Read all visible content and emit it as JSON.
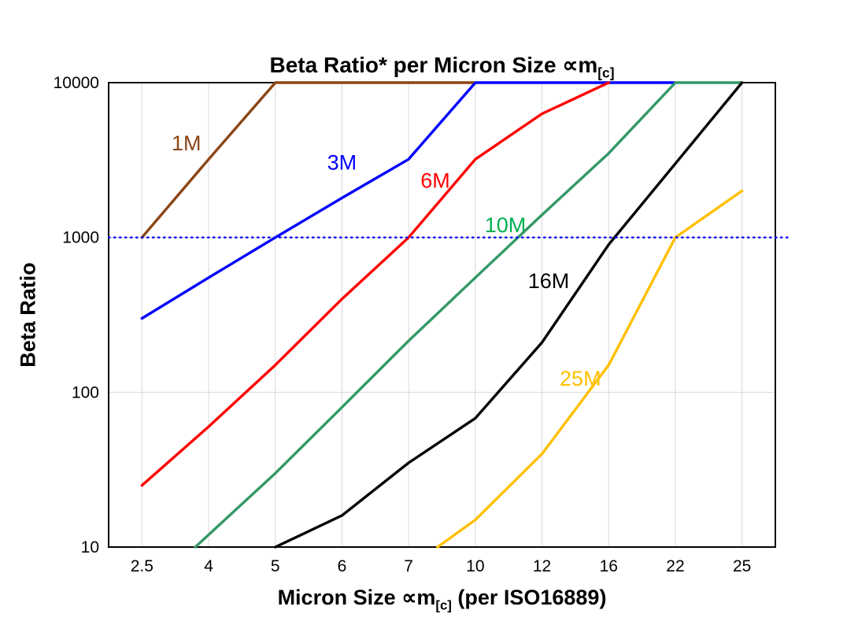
{
  "title": {
    "prefix": "Beta Ratio* per Micron Size ",
    "symbol": "∝m",
    "subscript": "[c]"
  },
  "axes": {
    "y_label": "Beta Ratio",
    "x_label_prefix": "Micron Size ",
    "x_label_symbol": "∝m",
    "x_label_subscript": "[c]",
    "x_label_suffix": " (per ISO16889)"
  },
  "chart_data": {
    "type": "line",
    "title": "Beta Ratio* per Micron Size ∝m[c]",
    "xlabel": "Micron Size ∝m[c] (per ISO16889)",
    "ylabel": "Beta Ratio",
    "x_scale": "categorical",
    "y_scale": "log",
    "grid": true,
    "legend_position": "inline-labels",
    "x_categories": [
      2.5,
      4,
      5,
      6,
      7,
      10,
      12,
      16,
      22,
      25
    ],
    "y_ticks": [
      10,
      100,
      1000,
      10000
    ],
    "ylim": [
      10,
      10000
    ],
    "reference_line": {
      "value": 1000,
      "color": "#0000ff",
      "style": "dotted"
    },
    "series": [
      {
        "name": "1M",
        "color": "#8b4513",
        "points": [
          [
            2.5,
            1000
          ],
          [
            4,
            3200
          ],
          [
            5,
            10000
          ],
          [
            10,
            10000
          ]
        ]
      },
      {
        "name": "3M",
        "color": "#0000ff",
        "points": [
          [
            2.5,
            300
          ],
          [
            4,
            550
          ],
          [
            5,
            1000
          ],
          [
            6,
            1800
          ],
          [
            7,
            3200
          ],
          [
            10,
            10000
          ],
          [
            22,
            10000
          ]
        ]
      },
      {
        "name": "6M",
        "color": "#ff0000",
        "points": [
          [
            2.5,
            25
          ],
          [
            4,
            60
          ],
          [
            5,
            150
          ],
          [
            6,
            400
          ],
          [
            7,
            1000
          ],
          [
            10,
            3200
          ],
          [
            12,
            6300
          ],
          [
            16,
            10000
          ]
        ]
      },
      {
        "name": "10M",
        "color": "#339966",
        "points": [
          [
            3.7,
            10
          ],
          [
            5,
            30
          ],
          [
            6,
            80
          ],
          [
            7,
            215
          ],
          [
            10,
            550
          ],
          [
            12,
            1400
          ],
          [
            16,
            3500
          ],
          [
            22,
            10000
          ],
          [
            25,
            10000
          ]
        ]
      },
      {
        "name": "16M",
        "color": "#000000",
        "points": [
          [
            5,
            10
          ],
          [
            6,
            16
          ],
          [
            7,
            35
          ],
          [
            10,
            68
          ],
          [
            12,
            210
          ],
          [
            16,
            900
          ],
          [
            22,
            3000
          ],
          [
            25,
            10000
          ]
        ]
      },
      {
        "name": "25M",
        "color": "#ffc000",
        "points": [
          [
            8.3,
            10
          ],
          [
            10,
            15
          ],
          [
            12,
            40
          ],
          [
            16,
            150
          ],
          [
            22,
            1000
          ],
          [
            25,
            2000
          ]
        ]
      }
    ],
    "series_labels": [
      {
        "text": "1M",
        "color": "#8b4513",
        "x": 3.5,
        "y": 3650
      },
      {
        "text": "3M",
        "color": "#0000ff",
        "x": 6.0,
        "y": 2750
      },
      {
        "text": "6M",
        "color": "#ff0000",
        "x": 8.2,
        "y": 2100
      },
      {
        "text": "10M",
        "color": "#00b050",
        "x": 10.9,
        "y": 1080
      },
      {
        "text": "16M",
        "color": "#000000",
        "x": 12.4,
        "y": 470
      },
      {
        "text": "25M",
        "color": "#ffc000",
        "x": 14.3,
        "y": 110
      }
    ]
  }
}
